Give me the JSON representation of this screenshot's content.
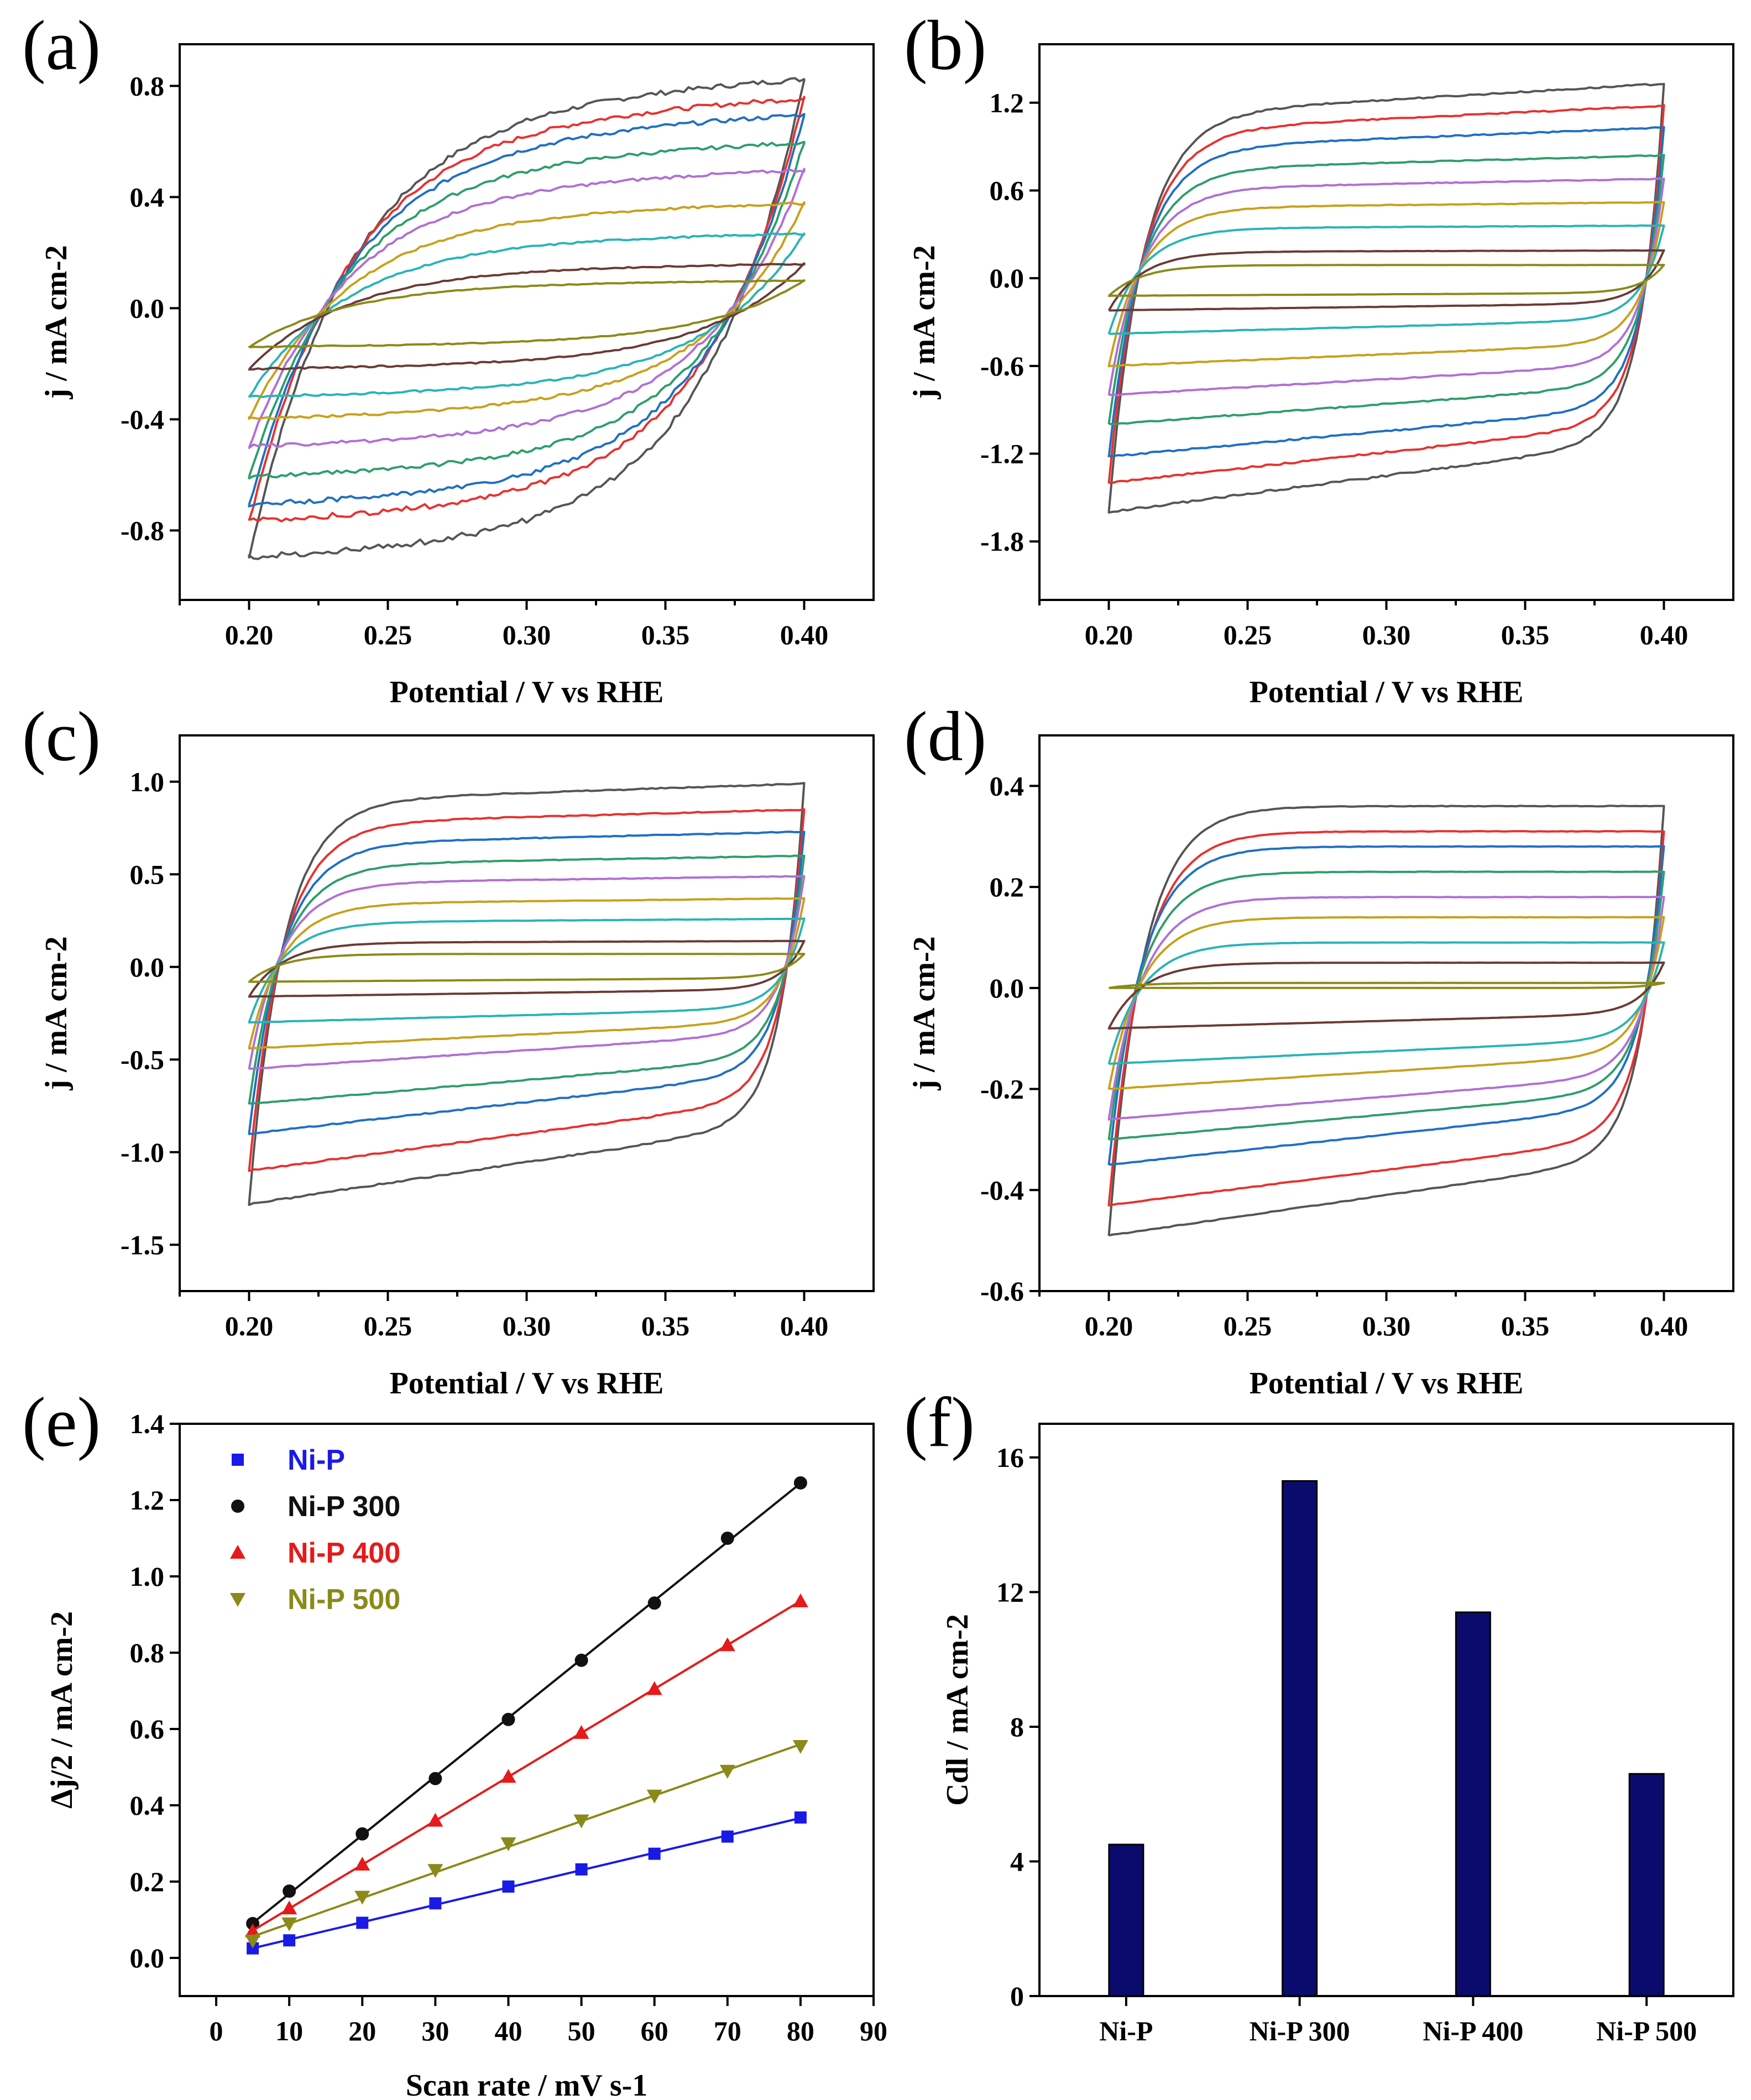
{
  "chart_data": [
    {
      "id": "a",
      "type": "line",
      "panel_label": "(a)",
      "title": "",
      "xlabel": "Potential / V vs RHE",
      "ylabel": "j / mA cm-2",
      "xlim": [
        0.175,
        0.425
      ],
      "ylim": [
        -1.05,
        0.95
      ],
      "xticks": [
        "0.20",
        "0.25",
        "0.30",
        "0.35",
        "0.40"
      ],
      "yticks": [
        "-0.8",
        "-0.4",
        "0.0",
        "0.4",
        "0.8"
      ],
      "ytick_values": [
        -0.8,
        -0.4,
        0.0,
        0.4,
        0.8
      ],
      "x_range": [
        0.2,
        0.4
      ],
      "series_colors": [
        "#555555",
        "#e8312f",
        "#1f6fc4",
        "#2e9e6a",
        "#b06fd6",
        "#c9a01c",
        "#2ab3b8",
        "#6b3a34",
        "#8a8a1a"
      ],
      "upper_end": [
        0.83,
        0.76,
        0.7,
        0.6,
        0.5,
        0.38,
        0.27,
        0.16,
        0.1
      ],
      "upper_slope": [
        0.12,
        0.11,
        0.1,
        0.08,
        0.065,
        0.05,
        0.035,
        0.02,
        0.015
      ],
      "lower_start": [
        -0.9,
        -0.77,
        -0.71,
        -0.61,
        -0.5,
        -0.4,
        -0.32,
        -0.22,
        -0.14
      ],
      "lower_slope": [
        0.08,
        0.08,
        0.07,
        0.06,
        0.055,
        0.045,
        0.035,
        0.025,
        0.015
      ],
      "knee": [
        0.035,
        0.035
      ],
      "noise": 0.04
    },
    {
      "id": "b",
      "type": "line",
      "panel_label": "(b)",
      "title": "",
      "xlabel": "Potential / V vs RHE",
      "ylabel": "j / mA cm-2",
      "xlim": [
        0.175,
        0.425
      ],
      "ylim": [
        -2.2,
        1.6
      ],
      "xticks": [
        "0.20",
        "0.25",
        "0.30",
        "0.35",
        "0.40"
      ],
      "yticks": [
        "-1.8",
        "-1.2",
        "-0.6",
        "0.0",
        "0.6",
        "1.2"
      ],
      "ytick_values": [
        -1.8,
        -1.2,
        -0.6,
        0.0,
        0.6,
        1.2
      ],
      "x_range": [
        0.2,
        0.4
      ],
      "series_colors": [
        "#555555",
        "#e8312f",
        "#1f6fc4",
        "#2e9e6a",
        "#b06fd6",
        "#c9a01c",
        "#2ab3b8",
        "#6b3a34",
        "#8a8a1a"
      ],
      "upper_end": [
        1.33,
        1.18,
        1.03,
        0.84,
        0.68,
        0.52,
        0.36,
        0.19,
        0.09
      ],
      "upper_slope": [
        0.22,
        0.18,
        0.15,
        0.1,
        0.07,
        0.04,
        0.02,
        0.01,
        0.0
      ],
      "lower_start": [
        -1.6,
        -1.4,
        -1.22,
        -1.0,
        -0.8,
        -0.6,
        -0.38,
        -0.22,
        -0.12
      ],
      "lower_slope": [
        0.5,
        0.42,
        0.35,
        0.28,
        0.22,
        0.16,
        0.1,
        0.05,
        0.02
      ],
      "knee": [
        0.012,
        0.008
      ],
      "noise": 0.015
    },
    {
      "id": "c",
      "type": "line",
      "panel_label": "(c)",
      "title": "",
      "xlabel": "Potential / V vs RHE",
      "ylabel": "j / mA cm-2",
      "xlim": [
        0.175,
        0.425
      ],
      "ylim": [
        -1.75,
        1.25
      ],
      "xticks": [
        "0.20",
        "0.25",
        "0.30",
        "0.35",
        "0.40"
      ],
      "yticks": [
        "-1.5",
        "-1.0",
        "-0.5",
        "0.0",
        "0.5",
        "1.0"
      ],
      "ytick_values": [
        -1.5,
        -1.0,
        -0.5,
        0.0,
        0.5,
        1.0
      ],
      "x_range": [
        0.2,
        0.4
      ],
      "series_colors": [
        "#555555",
        "#e8312f",
        "#1f6fc4",
        "#2e9e6a",
        "#b06fd6",
        "#c9a01c",
        "#2ab3b8",
        "#6b3a34",
        "#8a8a1a"
      ],
      "upper_end": [
        0.99,
        0.85,
        0.73,
        0.6,
        0.49,
        0.37,
        0.26,
        0.14,
        0.07
      ],
      "upper_slope": [
        0.1,
        0.08,
        0.07,
        0.05,
        0.04,
        0.03,
        0.02,
        0.01,
        0.0
      ],
      "lower_start": [
        -1.28,
        -1.1,
        -0.9,
        -0.74,
        -0.55,
        -0.44,
        -0.3,
        -0.16,
        -0.08
      ],
      "lower_slope": [
        0.45,
        0.4,
        0.34,
        0.26,
        0.2,
        0.15,
        0.08,
        0.04,
        0.02
      ],
      "knee": [
        0.012,
        0.008
      ],
      "noise": 0.012
    },
    {
      "id": "d",
      "type": "line",
      "panel_label": "(d)",
      "title": "",
      "xlabel": "Potential / V vs RHE",
      "ylabel": "j / mA cm-2",
      "xlim": [
        0.175,
        0.425
      ],
      "ylim": [
        -0.6,
        0.5
      ],
      "xticks": [
        "0.20",
        "0.25",
        "0.30",
        "0.35",
        "0.40"
      ],
      "yticks": [
        "-0.6",
        "-0.4",
        "-0.2",
        "0.0",
        "0.2",
        "0.4"
      ],
      "ytick_values": [
        -0.6,
        -0.4,
        -0.2,
        0.0,
        0.2,
        0.4
      ],
      "x_range": [
        0.2,
        0.4
      ],
      "series_colors": [
        "#555555",
        "#e8312f",
        "#1f6fc4",
        "#2e9e6a",
        "#b06fd6",
        "#c9a01c",
        "#2ab3b8",
        "#6b3a34",
        "#8a8a1a"
      ],
      "upper_end": [
        0.36,
        0.31,
        0.28,
        0.23,
        0.18,
        0.14,
        0.09,
        0.05,
        0.01
      ],
      "upper_slope": [
        0.0,
        0.0,
        0.0,
        0.0,
        0.0,
        0.0,
        0.0,
        0.0,
        0.0
      ],
      "lower_start": [
        -0.49,
        -0.43,
        -0.35,
        -0.3,
        -0.26,
        -0.2,
        -0.15,
        -0.08,
        0.0
      ],
      "lower_slope": [
        0.16,
        0.14,
        0.12,
        0.1,
        0.09,
        0.07,
        0.05,
        0.03,
        0.0
      ],
      "knee": [
        0.012,
        0.008
      ],
      "noise": 0.006
    },
    {
      "id": "e",
      "type": "scatter",
      "panel_label": "(e)",
      "title": "",
      "xlabel": "Scan rate / mV s-1",
      "ylabel": "Δj/2 / mA cm-2",
      "xlim": [
        -5,
        90
      ],
      "ylim": [
        -0.1,
        1.4
      ],
      "xticks": [
        "0",
        "10",
        "20",
        "30",
        "40",
        "50",
        "60",
        "70",
        "80",
        "90"
      ],
      "xtick_values": [
        0,
        10,
        20,
        30,
        40,
        50,
        60,
        70,
        80,
        90
      ],
      "yticks": [
        "0.0",
        "0.2",
        "0.4",
        "0.6",
        "0.8",
        "1.0",
        "1.2",
        "1.4"
      ],
      "ytick_values": [
        0.0,
        0.2,
        0.4,
        0.6,
        0.8,
        1.0,
        1.2,
        1.4
      ],
      "x": [
        5,
        10,
        20,
        30,
        40,
        50,
        60,
        70,
        80
      ],
      "series": [
        {
          "name": "Ni-P",
          "color": "#1a1ae6",
          "marker": "square",
          "values": [
            0.025,
            0.046,
            0.092,
            0.143,
            0.187,
            0.232,
            0.273,
            0.318,
            0.368
          ]
        },
        {
          "name": "Ni-P 300",
          "color": "#111111",
          "marker": "circle",
          "values": [
            0.09,
            0.175,
            0.325,
            0.47,
            0.625,
            0.78,
            0.93,
            1.1,
            1.245
          ]
        },
        {
          "name": "Ni-P 400",
          "color": "#e61a1a",
          "marker": "triangle-up",
          "values": [
            0.07,
            0.13,
            0.245,
            0.36,
            0.475,
            0.59,
            0.705,
            0.82,
            0.935
          ]
        },
        {
          "name": "Ni-P 500",
          "color": "#8a8a1a",
          "marker": "triangle-down",
          "values": [
            0.045,
            0.09,
            0.16,
            0.23,
            0.3,
            0.36,
            0.425,
            0.49,
            0.555
          ]
        }
      ],
      "legend_position": "top-left"
    },
    {
      "id": "f",
      "type": "bar",
      "panel_label": "(f)",
      "title": "",
      "xlabel": "",
      "ylabel": "Cdl / mA cm-2",
      "categories": [
        "Ni-P",
        "Ni-P 300",
        "Ni-P 400",
        "Ni-P 500"
      ],
      "values": [
        4.5,
        15.3,
        11.4,
        6.6
      ],
      "ylim": [
        0,
        17
      ],
      "yticks": [
        "0",
        "4",
        "8",
        "12",
        "16"
      ],
      "ytick_values": [
        0,
        4,
        8,
        12,
        16
      ],
      "bar_color": "#0b0b6e"
    }
  ]
}
